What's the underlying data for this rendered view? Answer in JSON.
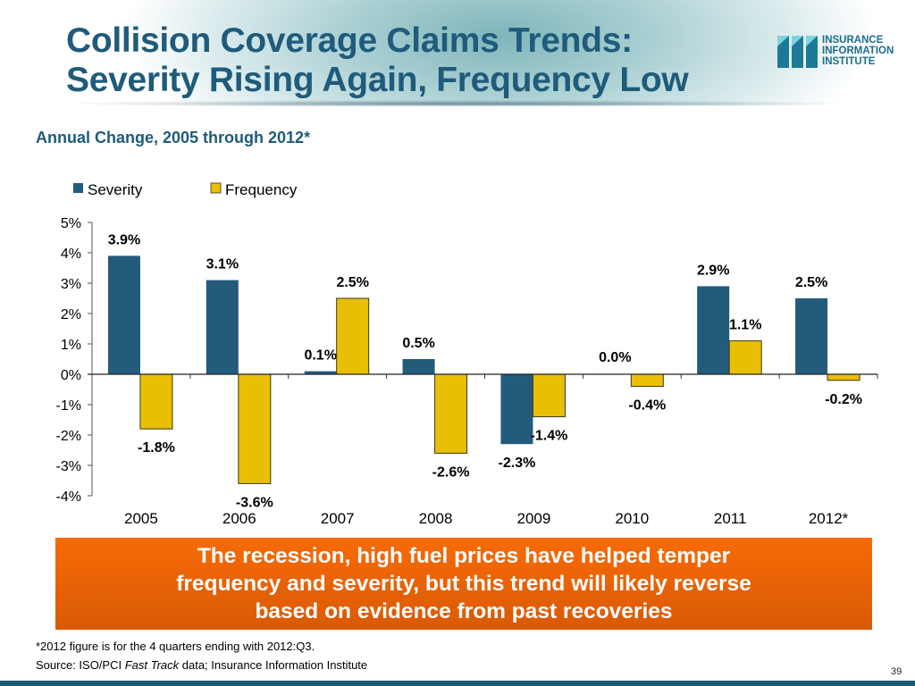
{
  "header": {
    "title_line1": "Collision Coverage Claims Trends:",
    "title_line2": "Severity Rising Again, Frequency Low",
    "logo": {
      "line1": "INSURANCE",
      "line2": "INFORMATION",
      "line3": "INSTITUTE"
    }
  },
  "colors": {
    "severity": "#235b7b",
    "frequency": "#e9bf06",
    "title": "#1f5b7a",
    "callout": "#f06a08"
  },
  "chart_data": {
    "type": "bar",
    "title": "Annual Change, 2005 through 2012*",
    "xlabel": "",
    "ylabel": "",
    "categories": [
      "2005",
      "2006",
      "2007",
      "2008",
      "2009",
      "2010",
      "2011",
      "2012*"
    ],
    "series": [
      {
        "name": "Severity",
        "values": [
          3.9,
          3.1,
          0.1,
          0.5,
          -2.3,
          0.0,
          2.9,
          2.5
        ],
        "labels": [
          "3.9%",
          "3.1%",
          "0.1%",
          "0.5%",
          "-2.3%",
          "0.0%",
          "2.9%",
          "2.5%"
        ]
      },
      {
        "name": "Frequency",
        "values": [
          -1.8,
          -3.6,
          2.5,
          -2.6,
          -1.4,
          -0.4,
          1.1,
          -0.2
        ],
        "labels": [
          "-1.8%",
          "-3.6%",
          "2.5%",
          "-2.6%",
          "-1.4%",
          "-0.4%",
          "1.1%",
          "-0.2%"
        ]
      }
    ],
    "ylim": [
      -4,
      5
    ],
    "yticks": [
      "-4%",
      "-3%",
      "-2%",
      "-1%",
      "0%",
      "1%",
      "2%",
      "3%",
      "4%",
      "5%"
    ],
    "grid": false,
    "legend": "top-left"
  },
  "callout": {
    "line1": "The recession, high fuel prices have helped temper",
    "line2": "frequency and severity, but this trend will likely reverse",
    "line3": "based on evidence from past recoveries"
  },
  "footer": {
    "note": "*2012 figure is for the 4 quarters ending with 2012:Q3.",
    "source_prefix": "Source: ISO/PCI ",
    "source_italic": "Fast Track",
    "source_suffix": " data; Insurance Information Institute",
    "page_number": "39"
  }
}
